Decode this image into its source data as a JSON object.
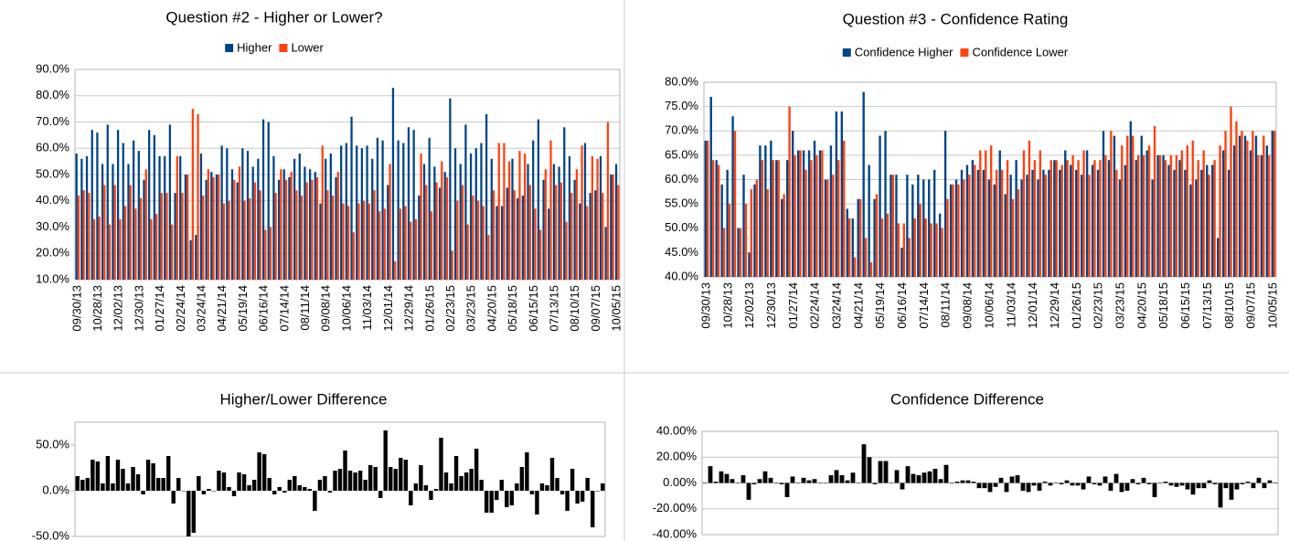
{
  "chart_data": [
    {
      "type": "bar",
      "title": "Question #2 - Higher or Lower?",
      "legend": "top",
      "grid": true,
      "categories": [
        "09/30/13",
        null,
        null,
        null,
        "10/28/13",
        null,
        null,
        null,
        "12/02/13",
        null,
        null,
        null,
        "12/30/13",
        null,
        null,
        null,
        "01/27/14",
        null,
        null,
        null,
        "02/24/14",
        null,
        null,
        null,
        "03/24/14",
        null,
        null,
        null,
        "04/21/14",
        null,
        null,
        null,
        "05/19/14",
        null,
        null,
        null,
        "06/16/14",
        null,
        null,
        null,
        "07/14/14",
        null,
        null,
        null,
        "08/11/14",
        null,
        null,
        null,
        "09/08/14",
        null,
        null,
        null,
        "10/06/14",
        null,
        null,
        null,
        "11/03/14",
        null,
        null,
        null,
        "12/01/14",
        null,
        null,
        null,
        "12/29/14",
        null,
        null,
        null,
        "01/26/15",
        null,
        null,
        null,
        "02/23/15",
        null,
        null,
        null,
        "03/23/15",
        null,
        null,
        null,
        "04/20/15",
        null,
        null,
        null,
        "05/18/15",
        null,
        null,
        null,
        "06/15/15",
        null,
        null,
        null,
        "07/13/15",
        null,
        null,
        null,
        "08/10/15",
        null,
        null,
        null,
        "09/07/15",
        null,
        null,
        null,
        "10/05/15"
      ],
      "series": [
        {
          "name": "Higher",
          "color": "#004586",
          "values": [
            58,
            56,
            57,
            67,
            66,
            54,
            69,
            54,
            67,
            62,
            54,
            63,
            59,
            48,
            67,
            65,
            57,
            57,
            69,
            43,
            57,
            50,
            25,
            27,
            58,
            48,
            51,
            50,
            61,
            60,
            52,
            47,
            60,
            59,
            53,
            56,
            71,
            70,
            57,
            48,
            52,
            49,
            56,
            58,
            53,
            52,
            51,
            39,
            56,
            58,
            49,
            61,
            62,
            72,
            61,
            60,
            61,
            56,
            64,
            63,
            46,
            83,
            63,
            62,
            68,
            67,
            42,
            54,
            64,
            53,
            45,
            51,
            79,
            60,
            54,
            69,
            58,
            60,
            62,
            73,
            56,
            38,
            38,
            45,
            56,
            41,
            42,
            54,
            63,
            71,
            48,
            37,
            54,
            53,
            68,
            57,
            48,
            39,
            62,
            43,
            44,
            57,
            30,
            50,
            54
          ]
        },
        {
          "name": "Lower",
          "color": "#ff420e",
          "values": [
            42,
            44,
            43,
            33,
            34,
            46,
            31,
            46,
            33,
            38,
            46,
            37,
            41,
            52,
            33,
            35,
            43,
            43,
            31,
            57,
            43,
            50,
            75,
            73,
            42,
            52,
            49,
            50,
            39,
            40,
            48,
            53,
            40,
            41,
            47,
            44,
            29,
            30,
            43,
            52,
            48,
            51,
            44,
            42,
            47,
            48,
            49,
            61,
            44,
            42,
            51,
            39,
            38,
            28,
            39,
            40,
            39,
            44,
            36,
            37,
            54,
            17,
            37,
            38,
            32,
            33,
            58,
            46,
            36,
            47,
            55,
            49,
            21,
            40,
            46,
            31,
            42,
            40,
            38,
            27,
            44,
            62,
            62,
            55,
            44,
            59,
            58,
            46,
            37,
            29,
            52,
            63,
            46,
            47,
            32,
            43,
            52,
            61,
            38,
            57,
            56,
            43,
            70,
            50,
            46
          ]
        }
      ],
      "ylim": [
        10,
        90
      ],
      "yticks": [
        {
          "value": 10,
          "label": "10.0%"
        },
        {
          "value": 20,
          "label": "20.0%"
        },
        {
          "value": 30,
          "label": "30.0%"
        },
        {
          "value": 40,
          "label": "40.0%"
        },
        {
          "value": 50,
          "label": "50.0%"
        },
        {
          "value": 60,
          "label": "60.0%"
        },
        {
          "value": 70,
          "label": "70.0%"
        },
        {
          "value": 80,
          "label": "80.0%"
        },
        {
          "value": 90,
          "label": "90.0%"
        }
      ]
    },
    {
      "type": "bar",
      "title": "Question #3 - Confidence Rating",
      "legend": "top",
      "grid": true,
      "categories": [
        "09/30/13",
        null,
        null,
        null,
        "10/28/13",
        null,
        null,
        null,
        "12/02/13",
        null,
        null,
        null,
        "12/30/13",
        null,
        null,
        null,
        "01/27/14",
        null,
        null,
        null,
        "02/24/14",
        null,
        null,
        null,
        "03/24/14",
        null,
        null,
        null,
        "04/21/14",
        null,
        null,
        null,
        "05/19/14",
        null,
        null,
        null,
        "06/16/14",
        null,
        null,
        null,
        "07/14/14",
        null,
        null,
        null,
        "08/11/14",
        null,
        null,
        null,
        "09/08/14",
        null,
        null,
        null,
        "10/06/14",
        null,
        null,
        null,
        "11/03/14",
        null,
        null,
        null,
        "12/01/14",
        null,
        null,
        null,
        "12/29/14",
        null,
        null,
        null,
        "01/26/15",
        null,
        null,
        null,
        "02/23/15",
        null,
        null,
        null,
        "03/23/15",
        null,
        null,
        null,
        "04/20/15",
        null,
        null,
        null,
        "05/18/15",
        null,
        null,
        null,
        "06/15/15",
        null,
        null,
        null,
        "07/13/15",
        null,
        null,
        null,
        "08/10/15",
        null,
        null,
        null,
        "09/07/15",
        null,
        null,
        null,
        "10/05/15"
      ],
      "series": [
        {
          "name": "Confidence Higher",
          "color": "#004586",
          "values": [
            68,
            77,
            64,
            59,
            62,
            73,
            50,
            61,
            45,
            59,
            67,
            67,
            68,
            64,
            56,
            64,
            70,
            66,
            66,
            66,
            68,
            66,
            60,
            67,
            74,
            74,
            54,
            52,
            56,
            78,
            63,
            56,
            69,
            70,
            61,
            61,
            46,
            61,
            59,
            61,
            60,
            60,
            62,
            53,
            70,
            59,
            60,
            62,
            63,
            64,
            62,
            62,
            60,
            59,
            66,
            57,
            61,
            64,
            60,
            61,
            62,
            60,
            62,
            62,
            64,
            62,
            66,
            63,
            62,
            61,
            66,
            63,
            62,
            70,
            64,
            69,
            60,
            63,
            72,
            64,
            69,
            66,
            60,
            65,
            65,
            63,
            62,
            64,
            62,
            59,
            60,
            62,
            63,
            63,
            48,
            66,
            62,
            67,
            69,
            69,
            66,
            69,
            65,
            67,
            70
          ]
        },
        {
          "name": "Confidence Lower",
          "color": "#ff420e",
          "values": [
            68,
            64,
            63,
            50,
            55,
            70,
            50,
            55,
            58,
            60,
            64,
            58,
            64,
            64,
            57,
            75,
            65,
            66,
            62,
            64,
            65,
            66,
            60,
            61,
            64,
            68,
            52,
            44,
            56,
            48,
            43,
            57,
            52,
            53,
            61,
            51,
            51,
            48,
            52,
            55,
            52,
            51,
            51,
            50,
            56,
            59,
            59,
            60,
            61,
            63,
            66,
            66,
            67,
            62,
            62,
            64,
            56,
            58,
            66,
            68,
            64,
            66,
            61,
            64,
            64,
            63,
            64,
            65,
            64,
            66,
            61,
            64,
            64,
            65,
            70,
            62,
            67,
            69,
            69,
            65,
            65,
            67,
            71,
            65,
            64,
            65,
            65,
            66,
            67,
            68,
            64,
            66,
            61,
            64,
            67,
            70,
            75,
            72,
            70,
            68,
            70,
            65,
            69,
            65,
            70
          ]
        }
      ],
      "ylim": [
        40,
        80
      ],
      "yticks": [
        {
          "value": 40,
          "label": "40.0%"
        },
        {
          "value": 45,
          "label": "45.0%"
        },
        {
          "value": 50,
          "label": "50.0%"
        },
        {
          "value": 55,
          "label": "55.0%"
        },
        {
          "value": 60,
          "label": "60.0%"
        },
        {
          "value": 65,
          "label": "65.0%"
        },
        {
          "value": 70,
          "label": "70.0%"
        },
        {
          "value": 75,
          "label": "75.0%"
        },
        {
          "value": 80,
          "label": "80.0%"
        }
      ]
    },
    {
      "type": "bar",
      "title": "Higher/Lower Difference",
      "grid": false,
      "color": "#000000",
      "values": [
        16,
        12,
        14,
        34,
        32,
        8,
        38,
        8,
        34,
        24,
        8,
        26,
        18,
        -4,
        34,
        30,
        14,
        14,
        38,
        -14,
        14,
        0,
        -50,
        -46,
        16,
        -4,
        2,
        0,
        22,
        20,
        4,
        -6,
        20,
        18,
        6,
        12,
        42,
        40,
        14,
        -4,
        4,
        -2,
        12,
        16,
        6,
        4,
        2,
        -22,
        12,
        16,
        -2,
        22,
        24,
        44,
        22,
        20,
        22,
        12,
        28,
        26,
        -8,
        66,
        26,
        24,
        36,
        34,
        -16,
        8,
        28,
        6,
        -10,
        2,
        58,
        20,
        8,
        38,
        16,
        20,
        24,
        46,
        12,
        -24,
        -24,
        -10,
        12,
        -18,
        -16,
        8,
        26,
        42,
        -4,
        -26,
        8,
        6,
        36,
        14,
        -4,
        -22,
        24,
        -14,
        -12,
        14,
        -40,
        0,
        8
      ],
      "ylim": [
        -50,
        75
      ],
      "yticks": [
        {
          "value": -50,
          "label": "-50.0%"
        },
        {
          "value": 0,
          "label": "0.0%"
        },
        {
          "value": 50,
          "label": "50.0%"
        }
      ]
    },
    {
      "type": "bar",
      "title": "Confidence Difference",
      "grid": true,
      "color": "#000000",
      "values": [
        0,
        13,
        1,
        9,
        7,
        3,
        0,
        6,
        -13,
        -1,
        3,
        9,
        4,
        0,
        -1,
        -11,
        5,
        0,
        4,
        2,
        3,
        0,
        0,
        6,
        10,
        6,
        2,
        8,
        0,
        30,
        20,
        -1,
        17,
        17,
        0,
        10,
        -5,
        13,
        7,
        6,
        8,
        9,
        11,
        3,
        14,
        0,
        1,
        2,
        2,
        1,
        -4,
        -4,
        -7,
        -3,
        4,
        -7,
        5,
        6,
        -6,
        -7,
        -2,
        -6,
        1,
        -2,
        0,
        -1,
        2,
        -2,
        -2,
        -5,
        5,
        -1,
        -2,
        5,
        -6,
        7,
        -7,
        -6,
        3,
        -1,
        4,
        -1,
        -11,
        0,
        1,
        -2,
        -3,
        -2,
        -5,
        -9,
        -4,
        -4,
        2,
        -1,
        -19,
        -4,
        -13,
        -5,
        -1,
        1,
        -4,
        4,
        -4,
        2,
        0
      ],
      "ylim": [
        -40,
        40
      ],
      "yticks": [
        {
          "value": -40,
          "label": "-40.00%"
        },
        {
          "value": -20,
          "label": "-20.00%"
        },
        {
          "value": 0,
          "label": "0.00%"
        },
        {
          "value": 20,
          "label": "20.00%"
        },
        {
          "value": 40,
          "label": "40.00%"
        }
      ]
    }
  ]
}
